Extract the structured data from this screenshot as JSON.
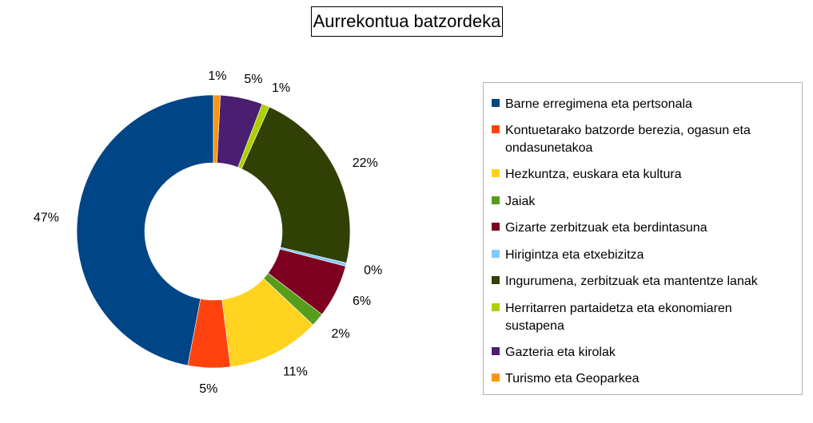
{
  "chart_data": {
    "type": "pie",
    "variant": "donut",
    "title": "Aurrekontua batzordeka",
    "legend_position": "right",
    "slices": [
      {
        "name": "Barne erregimena eta pertsonala",
        "label": "47%",
        "value": 47.0,
        "color": "#004586"
      },
      {
        "name": "Kontuetarako batzorde berezia, ogasun eta ondasunetakoa",
        "label": "5%",
        "value": 5.0,
        "color": "#ff420e"
      },
      {
        "name": "Hezkuntza, euskara eta kultura",
        "label": "11%",
        "value": 11.0,
        "color": "#ffd320"
      },
      {
        "name": "Jaiak",
        "label": "2%",
        "value": 1.6,
        "color": "#579d1c"
      },
      {
        "name": "Gizarte zerbitzuak eta berdintasuna",
        "label": "6%",
        "value": 6.3,
        "color": "#7e0021"
      },
      {
        "name": "Hirigintza eta etxebizitza",
        "label": "0%",
        "value": 0.4,
        "color": "#83caff"
      },
      {
        "name": "Ingurumena, zerbitzuak eta mantentze lanak",
        "label": "22%",
        "value": 22.0,
        "color": "#314004"
      },
      {
        "name": "Herritarren partaidetza eta ekonomiaren sustapena",
        "label": "1%",
        "value": 0.9,
        "color": "#aecf00"
      },
      {
        "name": "Gazteria eta kirolak",
        "label": "5%",
        "value": 5.0,
        "color": "#4b1f6f"
      },
      {
        "name": "Turismo eta Geoparkea",
        "label": "1%",
        "value": 0.8,
        "color": "#ff950e"
      }
    ]
  }
}
